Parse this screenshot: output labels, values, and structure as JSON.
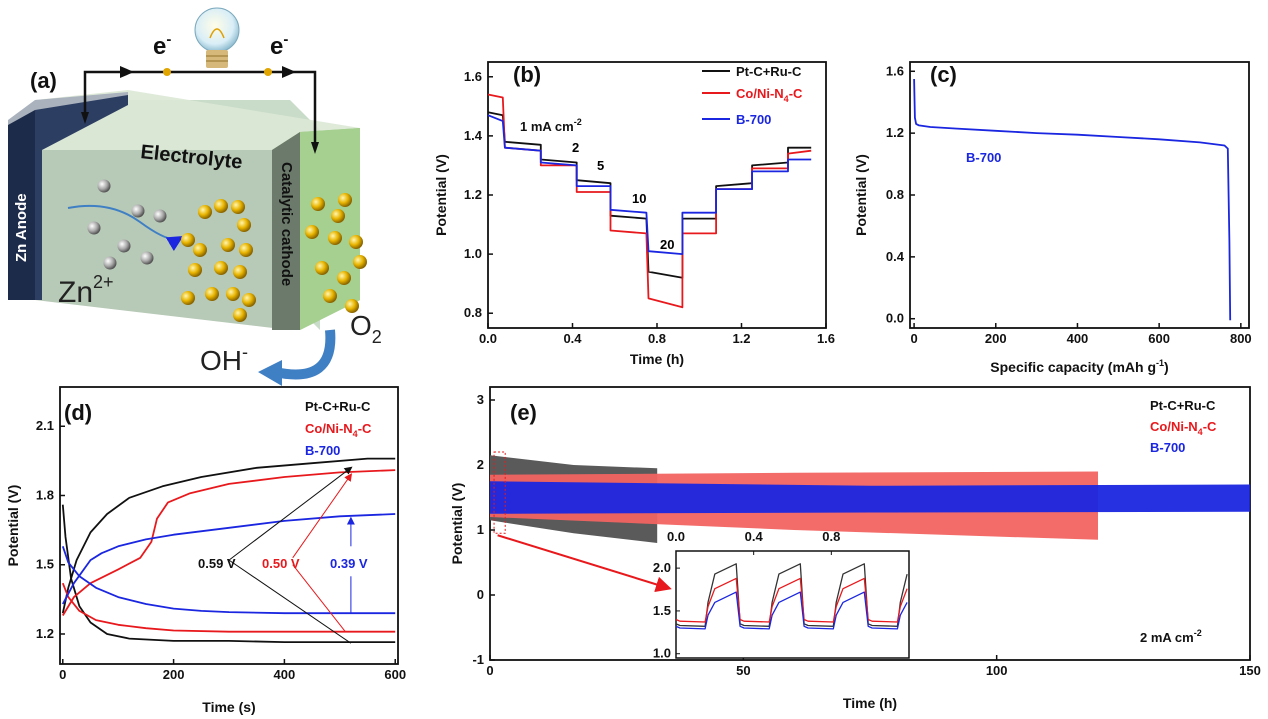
{
  "panels": {
    "a": {
      "label": "(a)",
      "electron_left": "e",
      "electron_right": "e",
      "electron_sup": "-",
      "electrolyte": "Electrolyte",
      "zn_anode": "Zn Anode",
      "cathode": "Catalytic cathode",
      "zn_ion": "Zn",
      "zn_ion_sup": "2+",
      "o2": "O",
      "o2_sub": "2",
      "oh": "OH",
      "oh_sup": "-"
    },
    "b": {
      "label": "(b)"
    },
    "c": {
      "label": "(c)"
    },
    "d": {
      "label": "(d)"
    },
    "e": {
      "label": "(e)"
    }
  },
  "colors": {
    "pt": "#111111",
    "co": "#e8191d",
    "b700": "#1a26e0"
  },
  "chart_data": [
    {
      "id": "b",
      "type": "line",
      "xlabel": "Time (h)",
      "ylabel": "Potential (V)",
      "xlim": [
        0,
        1.6
      ],
      "ylim": [
        0.75,
        1.65
      ],
      "xticks": [
        "0.0",
        "0.4",
        "0.8",
        "1.2",
        "1.6"
      ],
      "yticks": [
        "0.8",
        "1.0",
        "1.2",
        "1.4",
        "1.6"
      ],
      "legend": [
        "Pt-C+Ru-C",
        "Co/Ni-N4-C",
        "B-700"
      ],
      "annotations": [
        "1 mA cm-2",
        "2",
        "5",
        "10",
        "20"
      ],
      "series": [
        {
          "name": "Pt-C+Ru-C",
          "x": [
            0,
            0.07,
            0.08,
            0.25,
            0.25,
            0.42,
            0.42,
            0.58,
            0.58,
            0.75,
            0.76,
            0.92,
            0.92,
            1.08,
            1.08,
            1.25,
            1.25,
            1.42,
            1.42,
            1.53
          ],
          "y": [
            1.48,
            1.47,
            1.38,
            1.37,
            1.32,
            1.31,
            1.25,
            1.24,
            1.13,
            1.12,
            0.94,
            0.92,
            1.12,
            1.12,
            1.23,
            1.24,
            1.3,
            1.31,
            1.36,
            1.36
          ]
        },
        {
          "name": "Co/Ni-N4-C",
          "x": [
            0,
            0.07,
            0.08,
            0.25,
            0.25,
            0.42,
            0.42,
            0.58,
            0.58,
            0.75,
            0.76,
            0.92,
            0.92,
            1.08,
            1.08,
            1.25,
            1.25,
            1.42,
            1.42,
            1.53
          ],
          "y": [
            1.54,
            1.53,
            1.36,
            1.35,
            1.3,
            1.3,
            1.21,
            1.21,
            1.08,
            1.07,
            0.85,
            0.82,
            1.07,
            1.07,
            1.22,
            1.22,
            1.29,
            1.29,
            1.34,
            1.35
          ]
        },
        {
          "name": "B-700",
          "x": [
            0,
            0.07,
            0.08,
            0.25,
            0.25,
            0.42,
            0.42,
            0.58,
            0.58,
            0.75,
            0.76,
            0.92,
            0.92,
            1.08,
            1.08,
            1.25,
            1.25,
            1.42,
            1.42,
            1.53
          ],
          "y": [
            1.47,
            1.45,
            1.36,
            1.35,
            1.31,
            1.3,
            1.23,
            1.23,
            1.15,
            1.14,
            1.01,
            1.0,
            1.14,
            1.14,
            1.22,
            1.22,
            1.28,
            1.28,
            1.32,
            1.32
          ]
        }
      ]
    },
    {
      "id": "c",
      "type": "line",
      "xlabel": "Specific capacity (mAh g-1)",
      "ylabel": "Potential (V)",
      "xlim": [
        -10,
        820
      ],
      "ylim": [
        -0.06,
        1.66
      ],
      "xticks": [
        "0",
        "200",
        "400",
        "600",
        "800"
      ],
      "yticks": [
        "0.0",
        "0.4",
        "0.8",
        "1.2",
        "1.6"
      ],
      "legend": [
        "B-700"
      ],
      "series": [
        {
          "name": "B-700",
          "x": [
            0,
            2,
            5,
            12,
            40,
            100,
            200,
            300,
            400,
            500,
            600,
            700,
            760,
            768,
            772,
            774
          ],
          "y": [
            1.55,
            1.3,
            1.26,
            1.25,
            1.24,
            1.23,
            1.215,
            1.2,
            1.19,
            1.175,
            1.16,
            1.14,
            1.12,
            1.1,
            0.5,
            -0.01
          ]
        }
      ]
    },
    {
      "id": "d",
      "type": "line",
      "xlabel": "Time (s)",
      "ylabel": "Potential (V)",
      "xlim": [
        -5,
        605
      ],
      "ylim": [
        1.07,
        2.27
      ],
      "xticks": [
        "0",
        "200",
        "400",
        "600"
      ],
      "yticks": [
        "1.2",
        "1.5",
        "1.8",
        "2.1"
      ],
      "legend": [
        "Pt-C+Ru-C",
        "Co/Ni-N4-C",
        "B-700"
      ],
      "annotations": [
        "0.59 V",
        "0.50 V",
        "0.39 V"
      ],
      "series": [
        {
          "name": "Pt-C+Ru-C charge",
          "x": [
            0,
            10,
            25,
            50,
            80,
            120,
            180,
            250,
            350,
            450,
            550,
            600
          ],
          "y": [
            1.29,
            1.4,
            1.52,
            1.64,
            1.72,
            1.79,
            1.84,
            1.88,
            1.92,
            1.94,
            1.96,
            1.96
          ]
        },
        {
          "name": "Pt-C+Ru-C discharge",
          "x": [
            0,
            5,
            15,
            30,
            50,
            80,
            120,
            200,
            300,
            400,
            500,
            600
          ],
          "y": [
            1.76,
            1.62,
            1.44,
            1.32,
            1.25,
            1.2,
            1.18,
            1.17,
            1.17,
            1.165,
            1.165,
            1.165
          ]
        },
        {
          "name": "Co/Ni-N4-C charge",
          "x": [
            0,
            20,
            50,
            100,
            140,
            160,
            170,
            190,
            230,
            300,
            400,
            500,
            600
          ],
          "y": [
            1.28,
            1.36,
            1.42,
            1.48,
            1.53,
            1.6,
            1.7,
            1.77,
            1.81,
            1.85,
            1.88,
            1.9,
            1.91
          ]
        },
        {
          "name": "Co/Ni-N4-C discharge",
          "x": [
            0,
            10,
            30,
            60,
            100,
            150,
            200,
            300,
            400,
            500,
            600
          ],
          "y": [
            1.42,
            1.36,
            1.3,
            1.26,
            1.24,
            1.225,
            1.215,
            1.21,
            1.21,
            1.21,
            1.21
          ]
        },
        {
          "name": "B-700 charge",
          "x": [
            0,
            20,
            50,
            70,
            80,
            100,
            150,
            200,
            300,
            400,
            500,
            600
          ],
          "y": [
            1.33,
            1.42,
            1.52,
            1.55,
            1.56,
            1.58,
            1.61,
            1.63,
            1.66,
            1.69,
            1.71,
            1.72
          ]
        },
        {
          "name": "B-700 discharge",
          "x": [
            0,
            10,
            30,
            60,
            100,
            150,
            200,
            250,
            300,
            400,
            500,
            600
          ],
          "y": [
            1.58,
            1.51,
            1.45,
            1.4,
            1.36,
            1.33,
            1.31,
            1.3,
            1.295,
            1.29,
            1.29,
            1.29
          ]
        }
      ]
    },
    {
      "id": "e",
      "type": "area",
      "xlabel": "Time (h)",
      "ylabel": "Potential (V)",
      "xlim": [
        0,
        150
      ],
      "ylim": [
        -1,
        3.2
      ],
      "xticks": [
        "0",
        "50",
        "100",
        "150"
      ],
      "yticks": [
        "-1",
        "0",
        "1",
        "2",
        "3"
      ],
      "legend": [
        "Pt-C+Ru-C",
        "Co/Ni-N4-C",
        "B-700"
      ],
      "annotation": "2 mA cm-2",
      "series": [
        {
          "name": "Pt-C+Ru-C",
          "x_end": 33,
          "upper": [
            2.15,
            2.0,
            1.95
          ],
          "lower": [
            1.15,
            0.95,
            0.8
          ]
        },
        {
          "name": "Co/Ni-N4-C",
          "x_end": 120,
          "upper": [
            1.85,
            1.88,
            1.9
          ],
          "lower": [
            1.2,
            1.0,
            0.85
          ]
        },
        {
          "name": "B-700",
          "x_end": 150,
          "upper": [
            1.75,
            1.68,
            1.7
          ],
          "lower": [
            1.25,
            1.27,
            1.28
          ]
        }
      ],
      "inset": {
        "xlim": [
          0,
          1.2
        ],
        "ylim": [
          0.95,
          2.2
        ],
        "xticks": [
          "0.0",
          "0.4",
          "0.8"
        ],
        "yticks": [
          "1.0",
          "1.5",
          "2.0"
        ]
      }
    }
  ]
}
